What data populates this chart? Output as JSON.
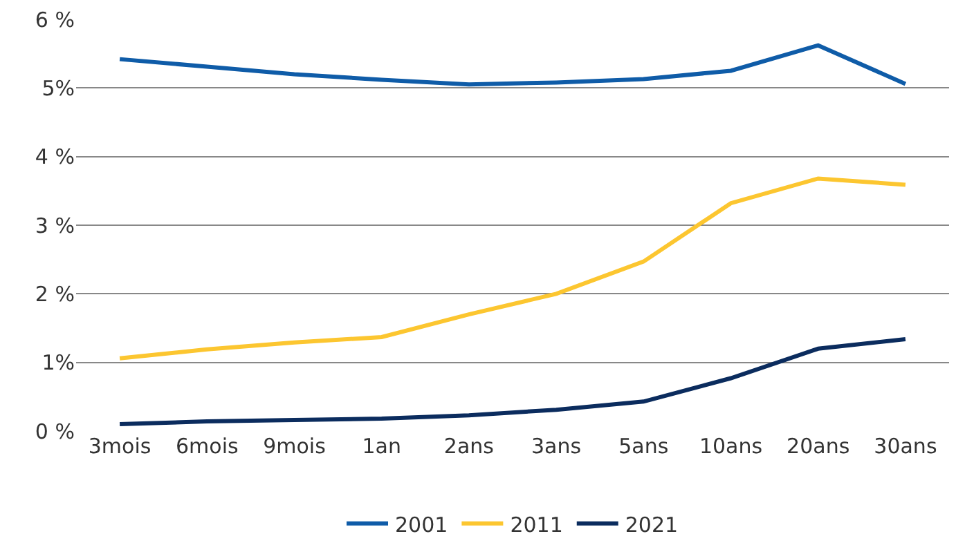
{
  "chart_data": {
    "type": "line",
    "categories": [
      "3mois",
      "6mois",
      "9mois",
      "1an",
      "2ans",
      "3ans",
      "5ans",
      "10ans",
      "20ans",
      "30ans"
    ],
    "series": [
      {
        "name": "2001",
        "color": "#0f5ca8",
        "values": [
          5.42,
          5.31,
          5.2,
          5.12,
          5.05,
          5.08,
          5.13,
          5.25,
          5.62,
          5.06
        ]
      },
      {
        "name": "2011",
        "color": "#fcc630",
        "values": [
          1.06,
          1.19,
          1.29,
          1.37,
          1.7,
          2.0,
          2.47,
          3.32,
          3.68,
          3.59
        ]
      },
      {
        "name": "2021",
        "color": "#0b2c5e",
        "values": [
          0.1,
          0.14,
          0.16,
          0.18,
          0.23,
          0.31,
          0.43,
          0.77,
          1.2,
          1.34
        ]
      }
    ],
    "ylim": [
      0,
      6
    ],
    "yticks": [
      {
        "value": 0,
        "label": "0 %"
      },
      {
        "value": 1,
        "label": "1%"
      },
      {
        "value": 2,
        "label": "2 %"
      },
      {
        "value": 3,
        "label": "3 %"
      },
      {
        "value": 4,
        "label": "4 %"
      },
      {
        "value": 5,
        "label": "5%"
      },
      {
        "value": 6,
        "label": "6 %"
      }
    ],
    "grid": "y",
    "legend": "bottom",
    "marker": "none",
    "line_style": "solid"
  }
}
